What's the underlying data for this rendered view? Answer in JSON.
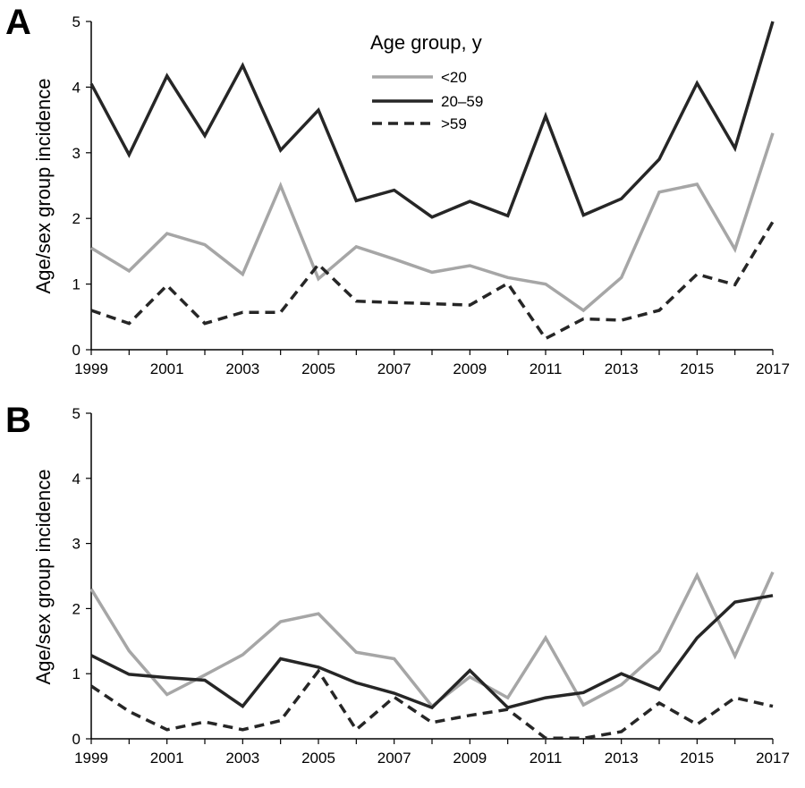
{
  "legend": {
    "title": "Age group, y",
    "entries": [
      "<20",
      "20–59",
      ">59"
    ]
  },
  "styles": {
    "<20": {
      "color": "#a6a6a6",
      "dash": ""
    },
    "20–59": {
      "color": "#262626",
      "dash": ""
    },
    ">59": {
      "color": "#262626",
      "dash": "11,7"
    }
  },
  "chart_data": [
    {
      "type": "line",
      "panel_label": "A",
      "ylabel": "Age/sex group incidence",
      "xlabel": "",
      "xlim": [
        1999,
        2017
      ],
      "ylim": [
        0,
        5
      ],
      "x_ticks": [
        1999,
        2001,
        2003,
        2005,
        2007,
        2009,
        2011,
        2013,
        2015,
        2017
      ],
      "y_ticks": [
        0,
        1,
        2,
        3,
        4,
        5
      ],
      "grid": false,
      "legend_position": "top-center",
      "x": [
        1999,
        2000,
        2001,
        2002,
        2003,
        2004,
        2005,
        2006,
        2007,
        2008,
        2009,
        2010,
        2011,
        2012,
        2013,
        2014,
        2015,
        2016,
        2017
      ],
      "series": [
        {
          "name": "<20",
          "values": [
            1.55,
            1.2,
            1.77,
            1.6,
            1.15,
            2.5,
            1.08,
            1.57,
            1.38,
            1.18,
            1.28,
            1.1,
            1.0,
            0.6,
            1.1,
            2.4,
            2.52,
            1.53,
            3.3
          ]
        },
        {
          "name": "20–59",
          "values": [
            4.05,
            2.97,
            4.17,
            3.26,
            4.33,
            3.04,
            3.65,
            2.27,
            2.43,
            2.02,
            2.26,
            2.04,
            3.56,
            2.05,
            2.3,
            2.9,
            4.06,
            3.07,
            5.0
          ]
        },
        {
          "name": ">59",
          "values": [
            0.6,
            0.4,
            0.98,
            0.4,
            0.57,
            0.57,
            1.3,
            0.74,
            0.72,
            0.7,
            0.68,
            1.01,
            0.17,
            0.47,
            0.45,
            0.6,
            1.15,
            0.99,
            1.95
          ]
        }
      ]
    },
    {
      "type": "line",
      "panel_label": "B",
      "ylabel": "Age/sex group incidence",
      "xlabel": "",
      "xlim": [
        1999,
        2017
      ],
      "ylim": [
        0,
        5
      ],
      "x_ticks": [
        1999,
        2001,
        2003,
        2005,
        2007,
        2009,
        2011,
        2013,
        2015,
        2017
      ],
      "y_ticks": [
        0,
        1,
        2,
        3,
        4,
        5
      ],
      "grid": false,
      "x": [
        1999,
        2000,
        2001,
        2002,
        2003,
        2004,
        2005,
        2006,
        2007,
        2008,
        2009,
        2010,
        2011,
        2012,
        2013,
        2014,
        2015,
        2016,
        2017
      ],
      "series": [
        {
          "name": "<20",
          "values": [
            2.3,
            1.35,
            0.68,
            0.98,
            1.29,
            1.8,
            1.92,
            1.33,
            1.23,
            0.5,
            0.95,
            0.63,
            1.55,
            0.52,
            0.83,
            1.35,
            2.51,
            1.27,
            2.56
          ]
        },
        {
          "name": "20–59",
          "values": [
            1.28,
            0.99,
            0.94,
            0.9,
            0.5,
            1.23,
            1.1,
            0.86,
            0.7,
            0.48,
            1.05,
            0.48,
            0.63,
            0.71,
            1.0,
            0.76,
            1.55,
            2.1,
            2.2
          ]
        },
        {
          "name": ">59",
          "values": [
            0.81,
            0.42,
            0.14,
            0.26,
            0.14,
            0.28,
            1.04,
            0.14,
            0.64,
            0.25,
            0.36,
            0.45,
            0.01,
            0.01,
            0.11,
            0.55,
            0.22,
            0.63,
            0.5
          ]
        }
      ]
    }
  ]
}
